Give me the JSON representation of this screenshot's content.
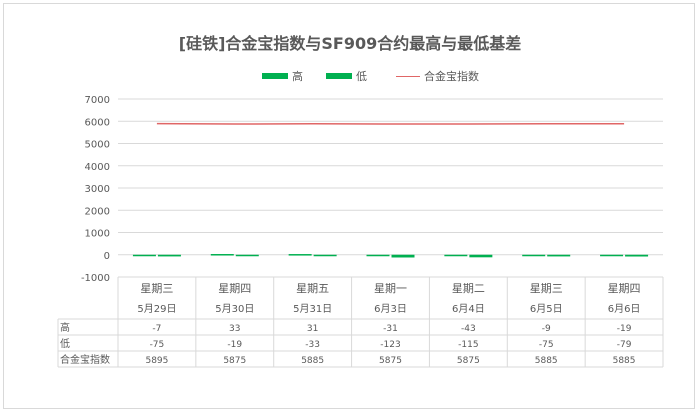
{
  "chart_data": {
    "type": "bar",
    "title": "[硅铁]合金宝指数与SF909合约最高与最低基差",
    "categories": [
      {
        "weekday": "星期三",
        "date": "5月29日"
      },
      {
        "weekday": "星期四",
        "date": "5月30日"
      },
      {
        "weekday": "星期五",
        "date": "5月31日"
      },
      {
        "weekday": "星期一",
        "date": "6月3日"
      },
      {
        "weekday": "星期二",
        "date": "6月4日"
      },
      {
        "weekday": "星期三",
        "date": "6月5日"
      },
      {
        "weekday": "星期四",
        "date": "6月6日"
      }
    ],
    "series": [
      {
        "name": "高",
        "type": "bar",
        "color": "#00b050",
        "values": [
          -7,
          33,
          31,
          -31,
          -43,
          -9,
          -19
        ]
      },
      {
        "name": "低",
        "type": "bar",
        "color": "#00b050",
        "values": [
          -75,
          -19,
          -33,
          -123,
          -115,
          -75,
          -79
        ]
      },
      {
        "name": "合金宝指数",
        "type": "line",
        "color": "#e06666",
        "values": [
          5895,
          5875,
          5885,
          5875,
          5875,
          5885,
          5885
        ]
      }
    ],
    "ylim": [
      -1000,
      7000
    ],
    "yticks": [
      7000,
      6000,
      5000,
      4000,
      3000,
      2000,
      1000,
      0,
      -1000
    ],
    "grid": true,
    "legend_position": "top"
  }
}
